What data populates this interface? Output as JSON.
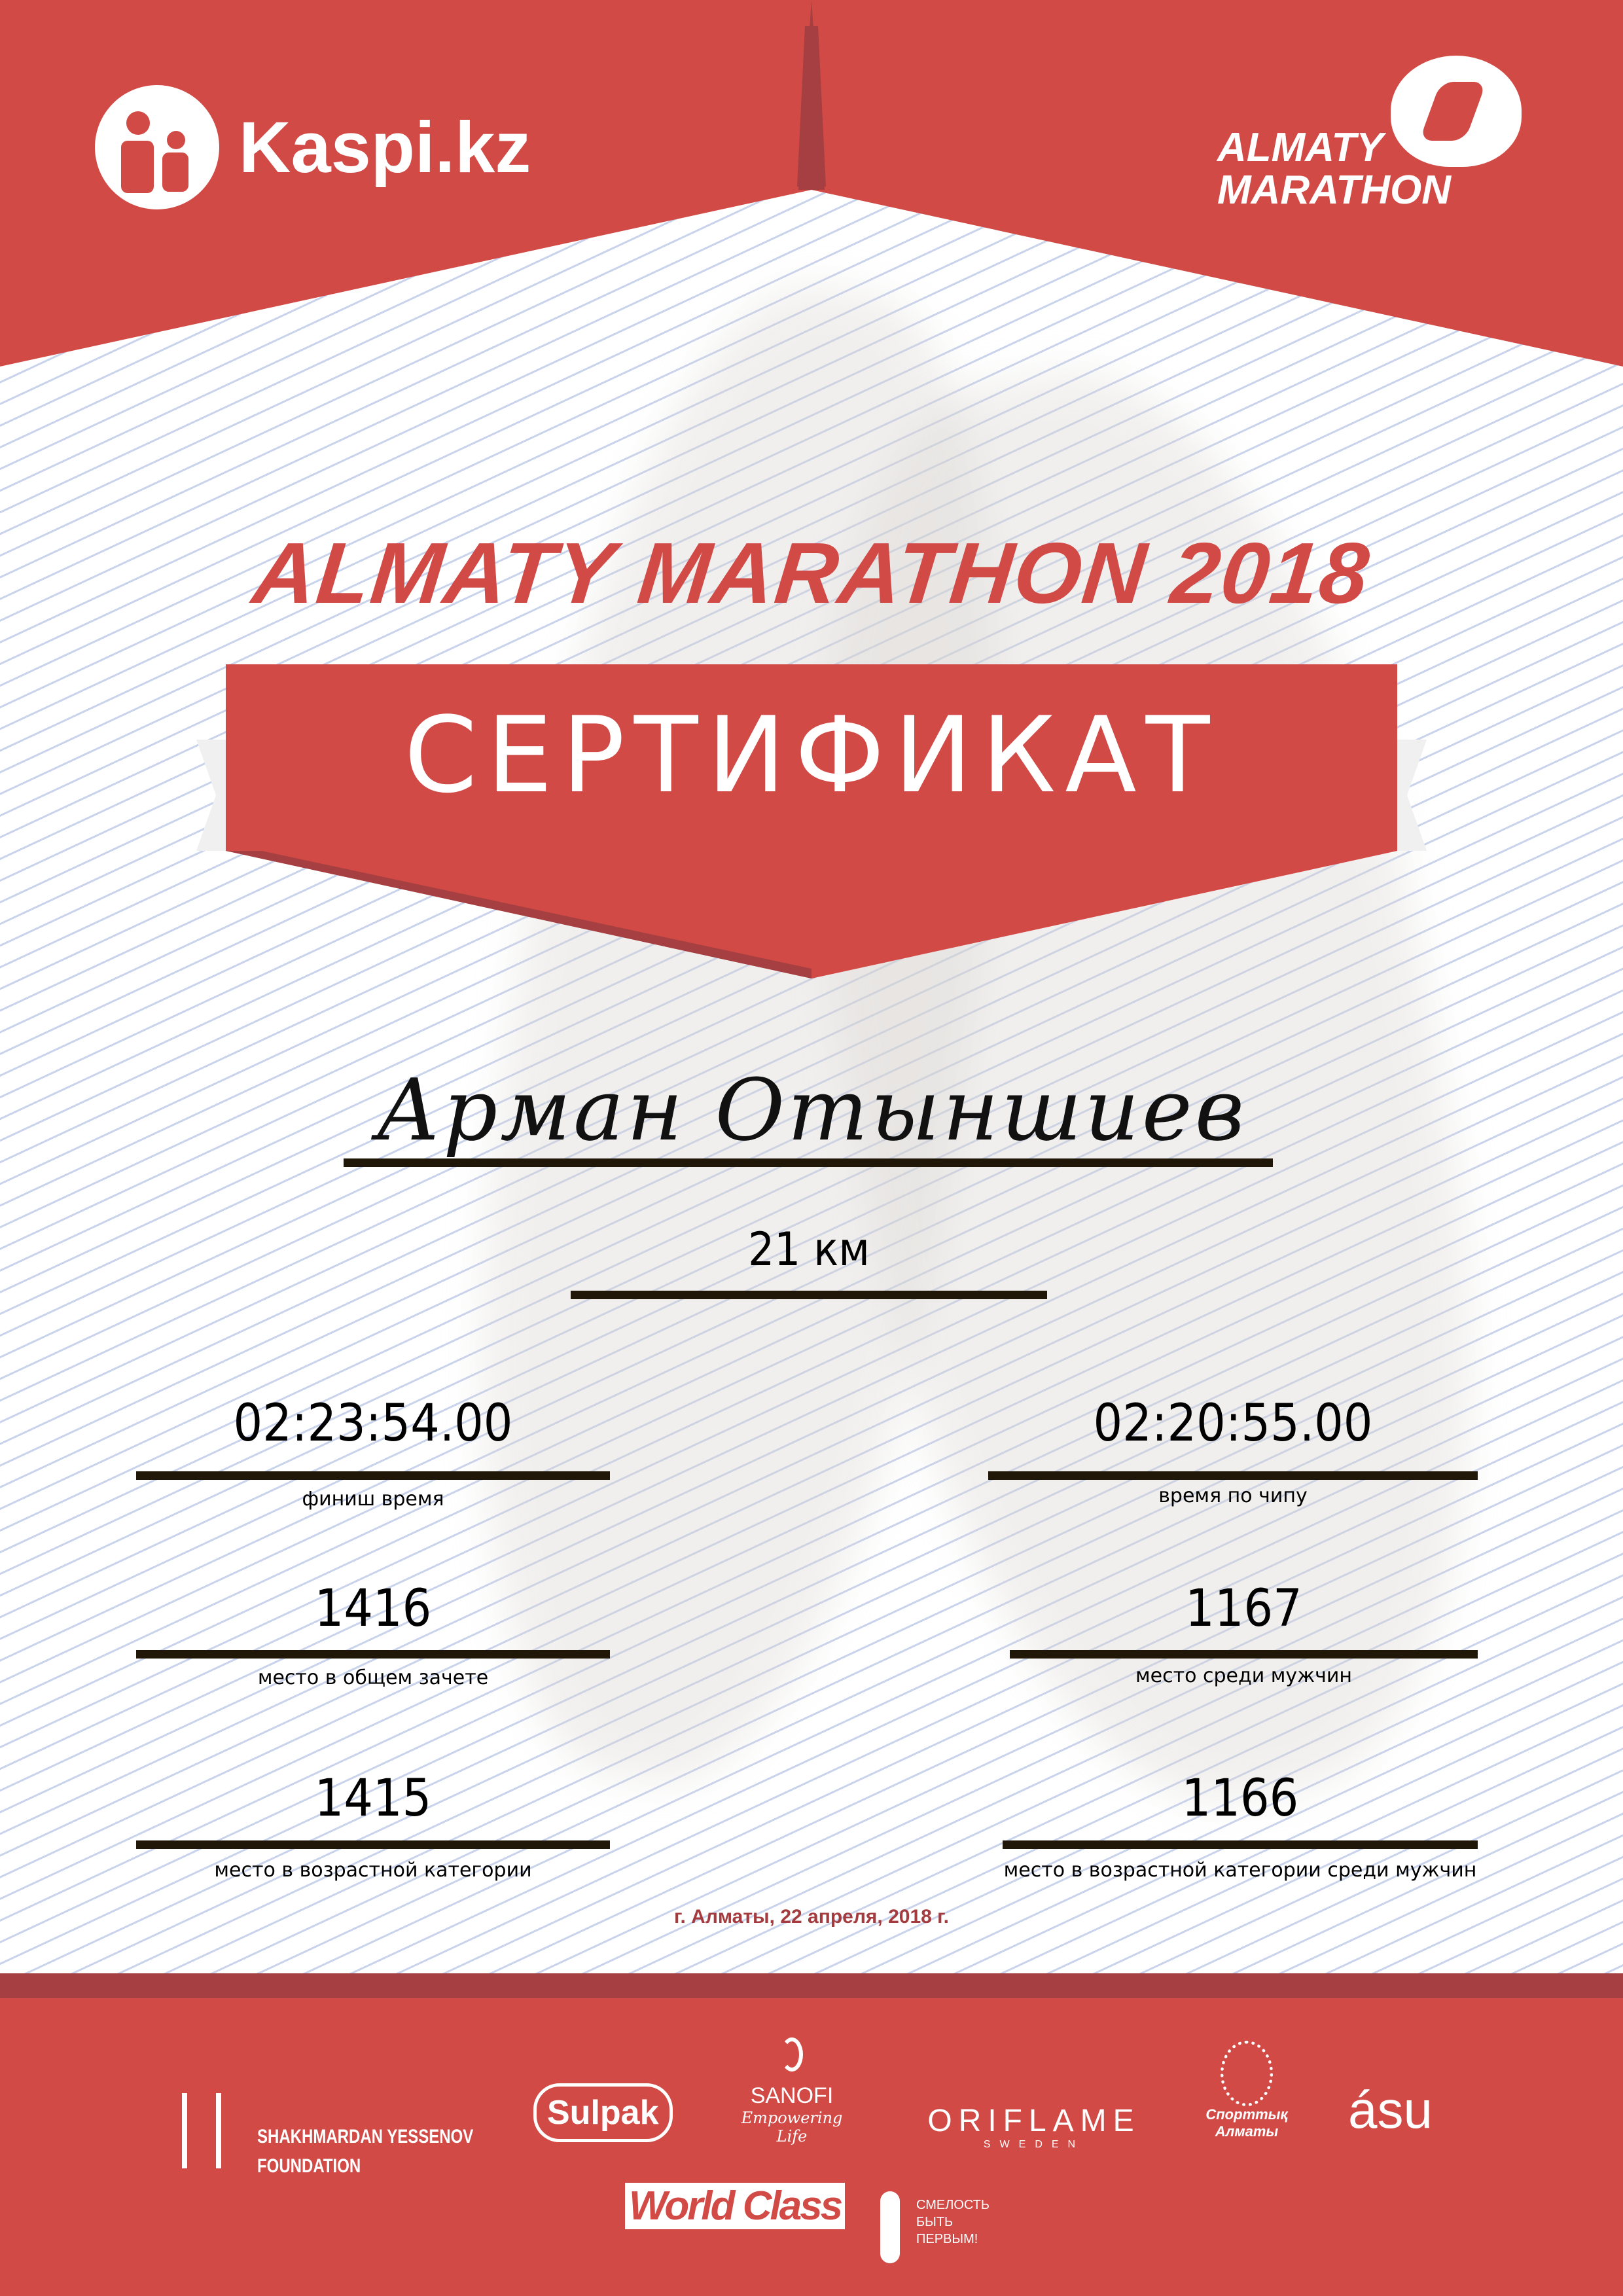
{
  "header": {
    "sponsor_logo": "Kaspi.kz",
    "event_logo": [
      "ALMATY",
      "MARATHON"
    ]
  },
  "title": "ALMATY MARATHON 2018",
  "certificate_label": "СЕРТИФИКАТ",
  "participant_name": "Арман Отыншиев",
  "distance": "21 км",
  "results": {
    "finish_time": {
      "value": "02:23:54.00",
      "label": "финиш время"
    },
    "chip_time": {
      "value": "02:20:55.00",
      "label": "время по чипу"
    },
    "overall_place": {
      "value": "1416",
      "label": "место в общем зачете"
    },
    "men_place": {
      "value": "1167",
      "label": "место среди мужчин"
    },
    "age_place": {
      "value": "1415",
      "label": "место в возрастной категории"
    },
    "men_age_place": {
      "value": "1166",
      "label": "место в возрастной категории среди мужчин"
    }
  },
  "date": "г. Алматы, 22 апреля, 2018 г.",
  "sponsors": {
    "yessenov": [
      "SHAKHMARDAN YESSENOV",
      "FOUNDATION"
    ],
    "sulpak": "Sulpak",
    "sanofi": [
      "SANOFI",
      "Empowering Life"
    ],
    "oriflame": [
      "ORIFLAME",
      "SWEDEN"
    ],
    "sport_almaty": [
      "Спорттық",
      "Алматы"
    ],
    "asu": "ásu",
    "worldclass": "World Class",
    "fund": [
      "СМЕЛОСТЬ",
      "БЫТЬ",
      "ПЕРВЫМ!"
    ]
  },
  "colors": {
    "brand_red": "#d24a46",
    "dark_red": "#a63f41",
    "rule": "#201708"
  }
}
